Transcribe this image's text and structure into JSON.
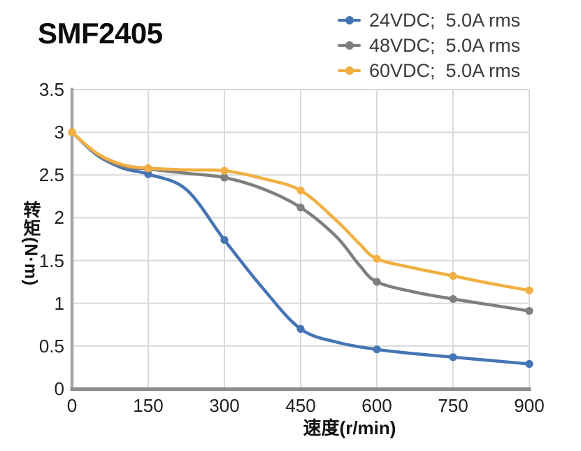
{
  "title": "SMF2405",
  "chart_data": {
    "type": "line",
    "title": "SMF2405",
    "xlabel": "速度(r/min)",
    "ylabel": "转矩(N·m)",
    "xlim": [
      0,
      900
    ],
    "ylim": [
      0,
      3.5
    ],
    "grid": true,
    "legend_position": "top-right",
    "x_tick_labels": [
      "0",
      "150",
      "300",
      "450",
      "600",
      "750",
      "900"
    ],
    "y_tick_labels": [
      "3.5",
      "3",
      "2.5",
      "2",
      "1.5",
      "1",
      "0.5",
      "0"
    ],
    "x": [
      0,
      150,
      300,
      450,
      600,
      750,
      900
    ],
    "series": [
      {
        "name": "24VDC;  5.0A rms",
        "color": "#4575B4",
        "values": [
          3.0,
          2.51,
          1.74,
          0.7,
          0.46,
          0.37,
          0.29
        ],
        "curve_points": [
          [
            0,
            3.0
          ],
          [
            50,
            2.73
          ],
          [
            100,
            2.58
          ],
          [
            150,
            2.51
          ],
          [
            225,
            2.33
          ],
          [
            300,
            1.74
          ],
          [
            375,
            1.18
          ],
          [
            450,
            0.7
          ],
          [
            525,
            0.54
          ],
          [
            600,
            0.46
          ],
          [
            675,
            0.41
          ],
          [
            750,
            0.37
          ],
          [
            825,
            0.33
          ],
          [
            900,
            0.29
          ]
        ]
      },
      {
        "name": "48VDC;  5.0A rms",
        "color": "#7F7F7F",
        "values": [
          3.0,
          2.57,
          2.47,
          2.12,
          1.25,
          1.05,
          0.91
        ],
        "curve_points": [
          [
            0,
            3.0
          ],
          [
            50,
            2.74
          ],
          [
            100,
            2.6
          ],
          [
            150,
            2.57
          ],
          [
            225,
            2.52
          ],
          [
            300,
            2.47
          ],
          [
            375,
            2.34
          ],
          [
            450,
            2.12
          ],
          [
            520,
            1.78
          ],
          [
            565,
            1.45
          ],
          [
            600,
            1.25
          ],
          [
            675,
            1.13
          ],
          [
            750,
            1.05
          ],
          [
            825,
            0.98
          ],
          [
            900,
            0.91
          ]
        ]
      },
      {
        "name": "60VDC;  5.0A rms",
        "color": "#F2AF42",
        "values": [
          3.0,
          2.58,
          2.55,
          2.32,
          1.52,
          1.32,
          1.15
        ],
        "curve_points": [
          [
            0,
            3.0
          ],
          [
            50,
            2.75
          ],
          [
            100,
            2.62
          ],
          [
            150,
            2.58
          ],
          [
            225,
            2.56
          ],
          [
            300,
            2.55
          ],
          [
            375,
            2.46
          ],
          [
            450,
            2.32
          ],
          [
            520,
            1.97
          ],
          [
            565,
            1.7
          ],
          [
            600,
            1.52
          ],
          [
            675,
            1.41
          ],
          [
            750,
            1.32
          ],
          [
            825,
            1.23
          ],
          [
            900,
            1.15
          ]
        ]
      }
    ],
    "style": {
      "grid_color": "#D9D9D9",
      "x_axis_color": "#8C8C8C",
      "y_axis_color": "#A6A6A6",
      "tick_text_color": "#1F1F1F",
      "legend_text_color": "#3A3A3A"
    }
  }
}
